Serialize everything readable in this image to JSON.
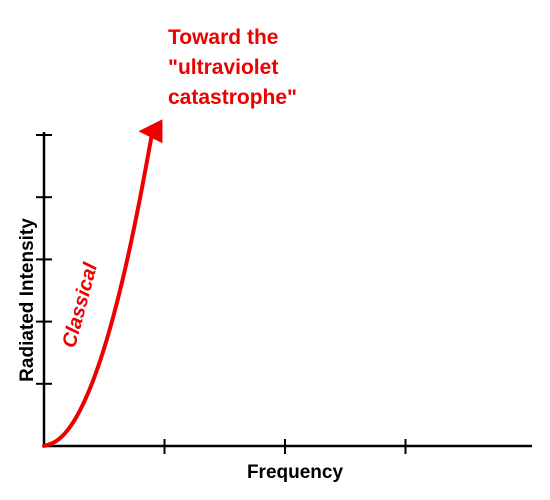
{
  "chart_data": {
    "type": "line",
    "xlabel": "Frequency",
    "ylabel": "Radiated Intensity",
    "xlim": [
      0,
      4
    ],
    "ylim": [
      0,
      5
    ],
    "x_ticks": [
      1,
      2,
      3
    ],
    "y_ticks": [
      1,
      2,
      3,
      4,
      5
    ],
    "grid": false,
    "series": [
      {
        "name": "Classical",
        "color": "#ee0000",
        "x": [
          0,
          0.1,
          0.2,
          0.3,
          0.4,
          0.5,
          0.6,
          0.7,
          0.8,
          0.9
        ],
        "y": [
          0,
          0.06,
          0.25,
          0.56,
          1.0,
          1.56,
          2.25,
          3.06,
          4.0,
          5.06
        ],
        "arrow": "end"
      }
    ],
    "annotation": {
      "lines": [
        "Toward the",
        "\"ultraviolet",
        "catastrophe\""
      ],
      "color": "#ee0000"
    }
  }
}
